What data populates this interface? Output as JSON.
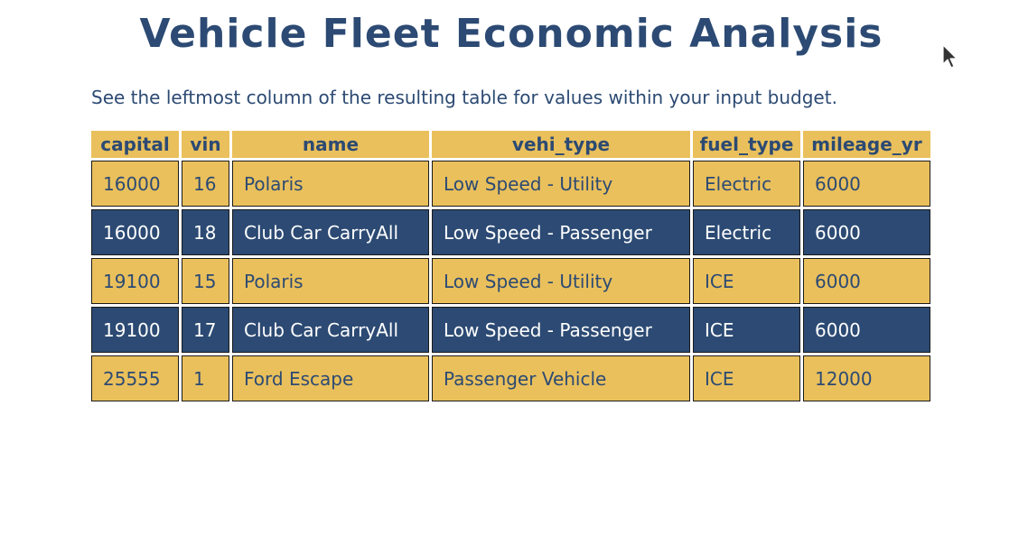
{
  "header": {
    "title": "Vehicle Fleet Economic Analysis",
    "subtitle": "See the leftmost column of the resulting table for values within your input budget."
  },
  "table": {
    "columns": [
      "capital",
      "vin",
      "name",
      "vehi_type",
      "fuel_type",
      "mileage_yr"
    ],
    "rows": [
      [
        "16000",
        "16",
        "Polaris",
        "Low Speed - Utility",
        "Electric",
        "6000"
      ],
      [
        "16000",
        "18",
        "Club Car CarryAll",
        "Low Speed - Passenger",
        "Electric",
        "6000"
      ],
      [
        "19100",
        "15",
        "Polaris",
        "Low Speed - Utility",
        "ICE",
        "6000"
      ],
      [
        "19100",
        "17",
        "Club Car CarryAll",
        "Low Speed - Passenger",
        "ICE",
        "6000"
      ],
      [
        "25555",
        "1",
        "Ford Escape",
        "Passenger Vehicle",
        "ICE",
        "12000"
      ]
    ]
  },
  "colors": {
    "accent_gold": "#eac05c",
    "accent_navy": "#2c4a73"
  },
  "icons": {
    "cursor": "mouse-pointer-icon"
  }
}
